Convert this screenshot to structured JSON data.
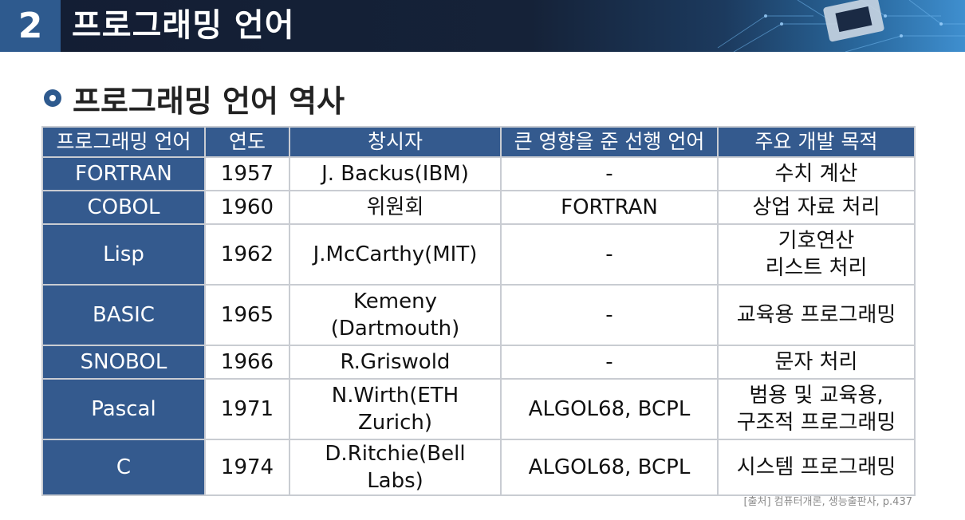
{
  "header": {
    "number": "2",
    "title": "프로그래밍 언어"
  },
  "section": {
    "title": "프로그래밍 언어 역사"
  },
  "table": {
    "columns": [
      "프로그래밍 언어",
      "연도",
      "창시자",
      "큰 영향을 준 선행 언어",
      "주요 개발 목적"
    ],
    "rows": [
      {
        "lang": "FORTRAN",
        "year": "1957",
        "creator": [
          "J. Backus(IBM)"
        ],
        "influence": "-",
        "purpose": [
          "수치 계산"
        ],
        "tall": false
      },
      {
        "lang": "COBOL",
        "year": "1960",
        "creator": [
          "위원회"
        ],
        "influence": "FORTRAN",
        "purpose": [
          "상업 자료 처리"
        ],
        "tall": false
      },
      {
        "lang": "Lisp",
        "year": "1962",
        "creator": [
          "J.McCarthy(MIT)"
        ],
        "influence": "-",
        "purpose": [
          "기호연산",
          "리스트 처리"
        ],
        "tall": true
      },
      {
        "lang": "BASIC",
        "year": "1965",
        "creator": [
          "Kemeny",
          "(Dartmouth)"
        ],
        "influence": "-",
        "purpose": [
          "교육용 프로그래밍"
        ],
        "tall": true
      },
      {
        "lang": "SNOBOL",
        "year": "1966",
        "creator": [
          "R.Griswold"
        ],
        "influence": "-",
        "purpose": [
          "문자 처리"
        ],
        "tall": false
      },
      {
        "lang": "Pascal",
        "year": "1971",
        "creator": [
          "N.Wirth(ETH Zurich)"
        ],
        "influence": "ALGOL68, BCPL",
        "purpose": [
          "범용 및 교육용,",
          "구조적 프로그래밍"
        ],
        "tall": true
      },
      {
        "lang": "C",
        "year": "1974",
        "creator": [
          "D.Ritchie(Bell Labs)"
        ],
        "influence": "ALGOL68, BCPL",
        "purpose": [
          "시스템 프로그래밍"
        ],
        "tall": false
      }
    ]
  },
  "source": "[출처] 컴퓨터개론, 생능출판사, p.437",
  "colors": {
    "header_bg": "#131d33",
    "accent": "#345a8e",
    "border": "#c9ccd2"
  }
}
